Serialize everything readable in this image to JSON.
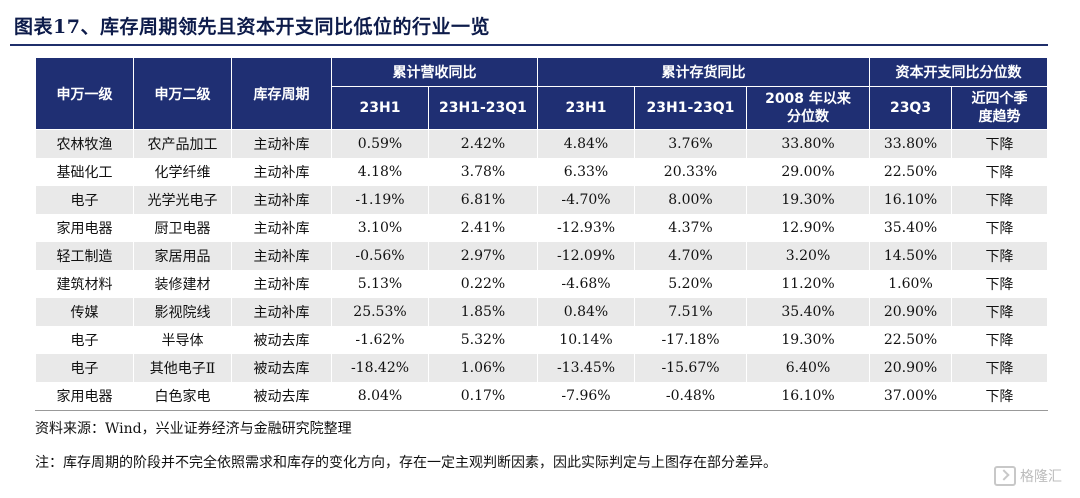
{
  "title": "图表17、库存周期领先且资本开支同比低位的行业一览",
  "header": {
    "col_sw1": "申万一级",
    "col_sw2": "申万二级",
    "col_cycle": "库存周期",
    "group_revenue": "累计营收同比",
    "group_inventory": "累计存货同比",
    "group_capex": "资本开支同比分位数",
    "rev_23h1": "23H1",
    "rev_diff": "23H1-23Q1",
    "inv_23h1": "23H1",
    "inv_diff": "23H1-23Q1",
    "inv_pct_line1": "2008 年以来",
    "inv_pct_line2": "分位数",
    "capex_23q3": "23Q3",
    "capex_trend_line1": "近四个季",
    "capex_trend_line2": "度趋势"
  },
  "rows": [
    [
      "农林牧渔",
      "农产品加工",
      "主动补库",
      "0.59%",
      "2.42%",
      "4.84%",
      "3.76%",
      "33.80%",
      "33.80%",
      "下降"
    ],
    [
      "基础化工",
      "化学纤维",
      "主动补库",
      "4.18%",
      "3.78%",
      "6.33%",
      "20.33%",
      "29.00%",
      "22.50%",
      "下降"
    ],
    [
      "电子",
      "光学光电子",
      "主动补库",
      "-1.19%",
      "6.81%",
      "-4.70%",
      "8.00%",
      "19.30%",
      "16.10%",
      "下降"
    ],
    [
      "家用电器",
      "厨卫电器",
      "主动补库",
      "3.10%",
      "2.41%",
      "-12.93%",
      "4.37%",
      "12.90%",
      "35.40%",
      "下降"
    ],
    [
      "轻工制造",
      "家居用品",
      "主动补库",
      "-0.56%",
      "2.97%",
      "-12.09%",
      "4.70%",
      "3.20%",
      "14.50%",
      "下降"
    ],
    [
      "建筑材料",
      "装修建材",
      "主动补库",
      "5.13%",
      "0.22%",
      "-4.68%",
      "5.20%",
      "11.20%",
      "1.60%",
      "下降"
    ],
    [
      "传媒",
      "影视院线",
      "主动补库",
      "25.53%",
      "1.85%",
      "0.84%",
      "7.51%",
      "35.40%",
      "20.90%",
      "下降"
    ],
    [
      "电子",
      "半导体",
      "被动去库",
      "-1.62%",
      "5.32%",
      "10.14%",
      "-17.18%",
      "19.30%",
      "22.50%",
      "下降"
    ],
    [
      "电子",
      "其他电子Ⅱ",
      "被动去库",
      "-18.42%",
      "1.06%",
      "-13.45%",
      "-15.67%",
      "6.40%",
      "20.90%",
      "下降"
    ],
    [
      "家用电器",
      "白色家电",
      "被动去库",
      "8.04%",
      "0.17%",
      "-7.96%",
      "-0.48%",
      "16.10%",
      "37.00%",
      "下降"
    ]
  ],
  "source_note": "资料来源：Wind，兴业证券经济与金融研究院整理",
  "footnote": "注：库存周期的阶段并不完全依照需求和库存的变化方向，存在一定主观判断因素，因此实际判定与上图存在部分差异。",
  "watermark": "格隆汇"
}
